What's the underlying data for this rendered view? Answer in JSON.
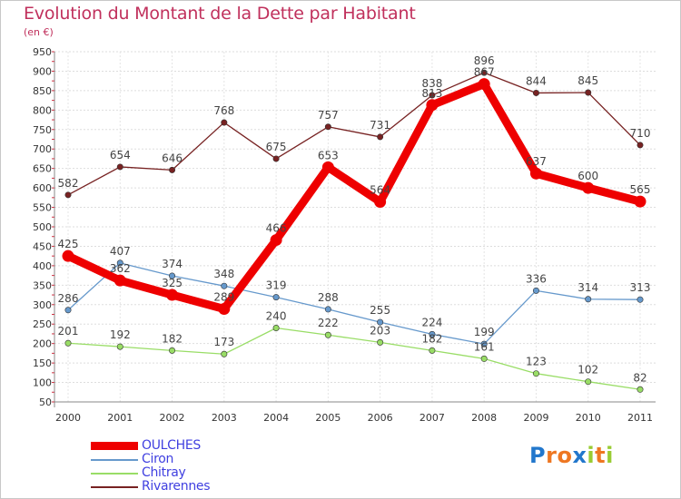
{
  "chart_data": {
    "type": "line",
    "title": "Evolution du Montant de la Dette par Habitant",
    "subtitle": "(en €)",
    "xlabel": "",
    "ylabel": "",
    "categories": [
      "2000",
      "2001",
      "2002",
      "2003",
      "2004",
      "2005",
      "2006",
      "2007",
      "2008",
      "2009",
      "2010",
      "2011"
    ],
    "ylim": [
      50,
      950
    ],
    "yticks": [
      50,
      100,
      150,
      200,
      250,
      300,
      350,
      400,
      450,
      500,
      550,
      600,
      650,
      700,
      750,
      800,
      850,
      900,
      950
    ],
    "grid": "horizontal",
    "legend_position": "bottom-left",
    "series": [
      {
        "name": "OULCHES",
        "color": "#ee0000",
        "emphasis": true,
        "values": [
          425,
          362,
          325,
          289,
          466,
          653,
          564,
          813,
          867,
          637,
          600,
          565
        ],
        "labels": [
          "425",
          "362",
          "325",
          "289",
          "466",
          "653",
          "564",
          "813",
          "867",
          "637",
          "600",
          "565"
        ]
      },
      {
        "name": "Ciron",
        "color": "#6699cc",
        "emphasis": false,
        "values": [
          286,
          407,
          374,
          348,
          319,
          288,
          255,
          224,
          199,
          336,
          314,
          313
        ],
        "labels": [
          "286",
          "407",
          "374",
          "348",
          "319",
          "288",
          "255",
          "224",
          "199",
          "336",
          "314",
          "313"
        ]
      },
      {
        "name": "Chitray",
        "color": "#99dd66",
        "emphasis": false,
        "values": [
          201,
          192,
          182,
          173,
          240,
          222,
          203,
          182,
          161,
          123,
          102,
          82
        ],
        "labels": [
          "201",
          "192",
          "182",
          "173",
          "240",
          "222",
          "203",
          "182",
          "161",
          "123",
          "102",
          "82"
        ]
      },
      {
        "name": "Rivarennes",
        "color": "#772222",
        "emphasis": false,
        "values": [
          582,
          654,
          646,
          768,
          675,
          757,
          731,
          838,
          896,
          844,
          845,
          710
        ],
        "labels": [
          "582",
          "654",
          "646",
          "768",
          "675",
          "757",
          "731",
          "838",
          "896",
          "844",
          "845",
          "710"
        ]
      }
    ]
  },
  "logo": {
    "text": "Proxiti",
    "letters": [
      "P",
      "r",
      "o",
      "x",
      "i",
      "t",
      "i"
    ],
    "colors": [
      "#2277cc",
      "#ee7722",
      "#ee7722",
      "#2277cc",
      "#99cc33",
      "#ee7722",
      "#99cc33"
    ]
  }
}
